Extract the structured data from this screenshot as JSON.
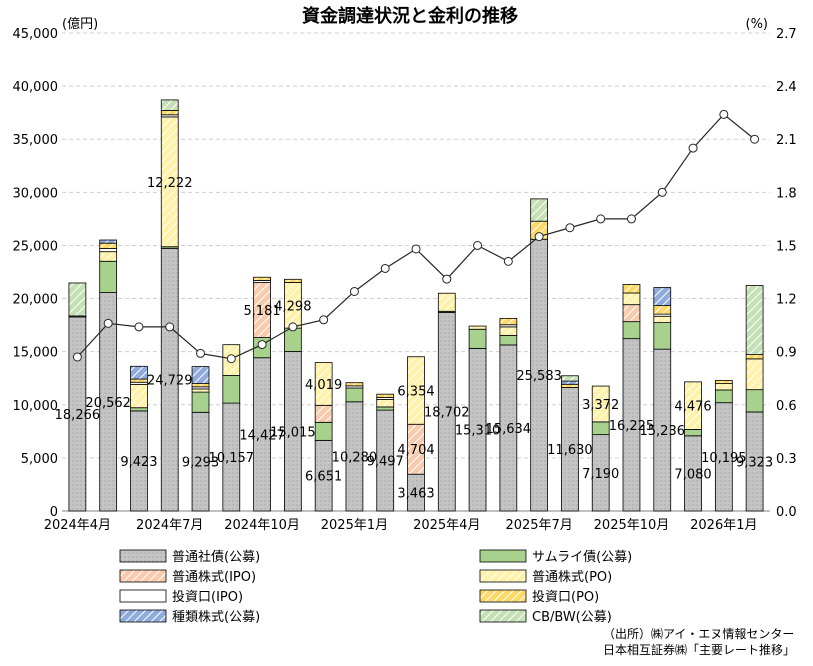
{
  "chart_data": {
    "type": "bar",
    "title": "資金調達状況と金利の推移",
    "y_left_unit": "(億円)",
    "y_right_unit": "(%)",
    "ylim_left": [
      0,
      45000
    ],
    "ylim_right": [
      0,
      2.7
    ],
    "y_left_ticks": [
      "0",
      "5,000",
      "10,000",
      "15,000",
      "20,000",
      "25,000",
      "30,000",
      "35,000",
      "40,000",
      "45,000"
    ],
    "y_right_ticks": [
      "0.0",
      "0.3",
      "0.6",
      "0.9",
      "1.2",
      "1.5",
      "1.8",
      "2.1",
      "2.4",
      "2.7"
    ],
    "x_tick_labels": [
      {
        "index": 0,
        "label": "2024年4月"
      },
      {
        "index": 3,
        "label": "2024年7月"
      },
      {
        "index": 6,
        "label": "2024年10月"
      },
      {
        "index": 9,
        "label": "2025年1月"
      },
      {
        "index": 12,
        "label": "2025年4月"
      },
      {
        "index": 15,
        "label": "2025年7月"
      },
      {
        "index": 18,
        "label": "2025年10月"
      },
      {
        "index": 21,
        "label": "2026年1月"
      }
    ],
    "categories": [
      "2024年4月",
      "2024年5月",
      "2024年6月",
      "2024年7月",
      "2024年8月",
      "2024年9月",
      "2024年10月",
      "2024年11月",
      "2024年12月",
      "2025年1月",
      "2025年2月",
      "2025年3月",
      "2025年4月",
      "2025年5月",
      "2025年6月",
      "2025年7月",
      "2025年8月",
      "2025年9月",
      "2025年10月",
      "2025年11月",
      "2025年12月",
      "2026年1月",
      "2026年2月"
    ],
    "grid": "horizontal dashed",
    "legend_position": "bottom",
    "series": [
      {
        "name": "普通社債(公募)",
        "color": "#c4c4c4",
        "pattern": "dots",
        "values": [
          18266,
          20562,
          9423,
          24729,
          9293,
          10157,
          14427,
          15015,
          6651,
          10280,
          9497,
          3463,
          18702,
          15310,
          15634,
          25583,
          11630,
          7190,
          16225,
          15236,
          7080,
          10195,
          9323
        ]
      },
      {
        "name": "サムライ債(公募)",
        "color": "#a9d18e",
        "pattern": "solid",
        "values": [
          100,
          2950,
          300,
          150,
          1900,
          2600,
          1900,
          2200,
          1700,
          1300,
          300,
          0,
          100,
          1800,
          900,
          0,
          0,
          1200,
          1600,
          2500,
          600,
          1200,
          2100
        ]
      },
      {
        "name": "普通株式(IPO)",
        "color": "#f8cbad",
        "pattern": "hatch",
        "values": [
          0,
          0,
          0,
          0,
          0,
          0,
          5181,
          0,
          1600,
          0,
          0,
          4704,
          0,
          0,
          0,
          0,
          0,
          0,
          1600,
          0,
          0,
          0,
          0
        ]
      },
      {
        "name": "普通株式(PO)",
        "color": "#fff2a8",
        "pattern": "hatch",
        "values": [
          0,
          900,
          2200,
          12222,
          300,
          2900,
          0,
          4298,
          4019,
          0,
          700,
          6354,
          1700,
          300,
          800,
          0,
          0,
          3372,
          1100,
          600,
          4476,
          600,
          2900
        ]
      },
      {
        "name": "投資口(IPO)",
        "color": "#ffffff",
        "pattern": "solid",
        "values": [
          0,
          300,
          200,
          200,
          200,
          0,
          200,
          0,
          0,
          200,
          200,
          0,
          0,
          0,
          200,
          0,
          0,
          0,
          0,
          200,
          0,
          0,
          0
        ]
      },
      {
        "name": "投資口(PO)",
        "color": "#ffd966",
        "pattern": "hatch",
        "values": [
          0,
          500,
          300,
          400,
          300,
          0,
          300,
          300,
          0,
          300,
          300,
          0,
          0,
          0,
          600,
          1700,
          300,
          0,
          800,
          800,
          0,
          300,
          400
        ]
      },
      {
        "name": "種類株式(公募)",
        "color": "#8faadc",
        "pattern": "hatch",
        "values": [
          0,
          300,
          1200,
          0,
          1600,
          0,
          0,
          0,
          0,
          0,
          0,
          0,
          0,
          0,
          0,
          0,
          300,
          0,
          0,
          1700,
          0,
          0,
          0
        ]
      },
      {
        "name": "CB/BW(公募)",
        "color": "#c5e0b4",
        "pattern": "hatch",
        "values": [
          3100,
          0,
          0,
          1000,
          0,
          0,
          0,
          0,
          0,
          0,
          0,
          0,
          0,
          0,
          0,
          2100,
          500,
          0,
          0,
          0,
          0,
          0,
          6500
        ]
      }
    ],
    "data_labels": [
      {
        "index": 0,
        "series": 0,
        "text": "18,266"
      },
      {
        "index": 1,
        "series": 0,
        "text": "20,562"
      },
      {
        "index": 2,
        "series": 0,
        "text": "9,423"
      },
      {
        "index": 3,
        "series": 0,
        "text": "24,729"
      },
      {
        "index": 3,
        "series": 3,
        "text": "12,222"
      },
      {
        "index": 4,
        "series": 0,
        "text": "9,293"
      },
      {
        "index": 5,
        "series": 0,
        "text": "10,157"
      },
      {
        "index": 6,
        "series": 0,
        "text": "14,427"
      },
      {
        "index": 6,
        "series": 2,
        "text": "5,181"
      },
      {
        "index": 7,
        "series": 0,
        "text": "15,015"
      },
      {
        "index": 7,
        "series": 3,
        "text": "4,298"
      },
      {
        "index": 8,
        "series": 0,
        "text": "6,651"
      },
      {
        "index": 8,
        "series": 3,
        "text": "4,019"
      },
      {
        "index": 9,
        "series": 0,
        "text": "10,280"
      },
      {
        "index": 10,
        "series": 0,
        "text": "9,497"
      },
      {
        "index": 11,
        "series": 0,
        "text": "3,463"
      },
      {
        "index": 11,
        "series": 2,
        "text": "4,704"
      },
      {
        "index": 11,
        "series": 3,
        "text": "6,354"
      },
      {
        "index": 12,
        "series": 0,
        "text": "18,702"
      },
      {
        "index": 13,
        "series": 0,
        "text": "15,310"
      },
      {
        "index": 14,
        "series": 0,
        "text": "15,634"
      },
      {
        "index": 15,
        "series": 0,
        "text": "25,583"
      },
      {
        "index": 16,
        "series": 0,
        "text": "11,630"
      },
      {
        "index": 17,
        "series": 0,
        "text": "7,190"
      },
      {
        "index": 17,
        "series": 3,
        "text": "3,372"
      },
      {
        "index": 18,
        "series": 0,
        "text": "16,225"
      },
      {
        "index": 19,
        "series": 0,
        "text": "15,236"
      },
      {
        "index": 20,
        "series": 0,
        "text": "7,080"
      },
      {
        "index": 20,
        "series": 3,
        "text": "4,476"
      },
      {
        "index": 21,
        "series": 0,
        "text": "10,195"
      },
      {
        "index": 22,
        "series": 0,
        "text": "9,323"
      }
    ],
    "rate_line": {
      "axis": "right",
      "color": "#262626",
      "values": [
        0.87,
        1.06,
        1.04,
        1.04,
        0.89,
        0.86,
        0.94,
        1.04,
        1.08,
        1.24,
        1.37,
        1.48,
        1.31,
        1.5,
        1.41,
        1.55,
        1.6,
        1.65,
        1.65,
        1.8,
        2.05,
        2.24,
        2.1
      ]
    }
  },
  "source": {
    "line1": "（出所）㈱アイ・エヌ情報センター",
    "line2": "日本相互証券㈱「主要レート推移」"
  }
}
